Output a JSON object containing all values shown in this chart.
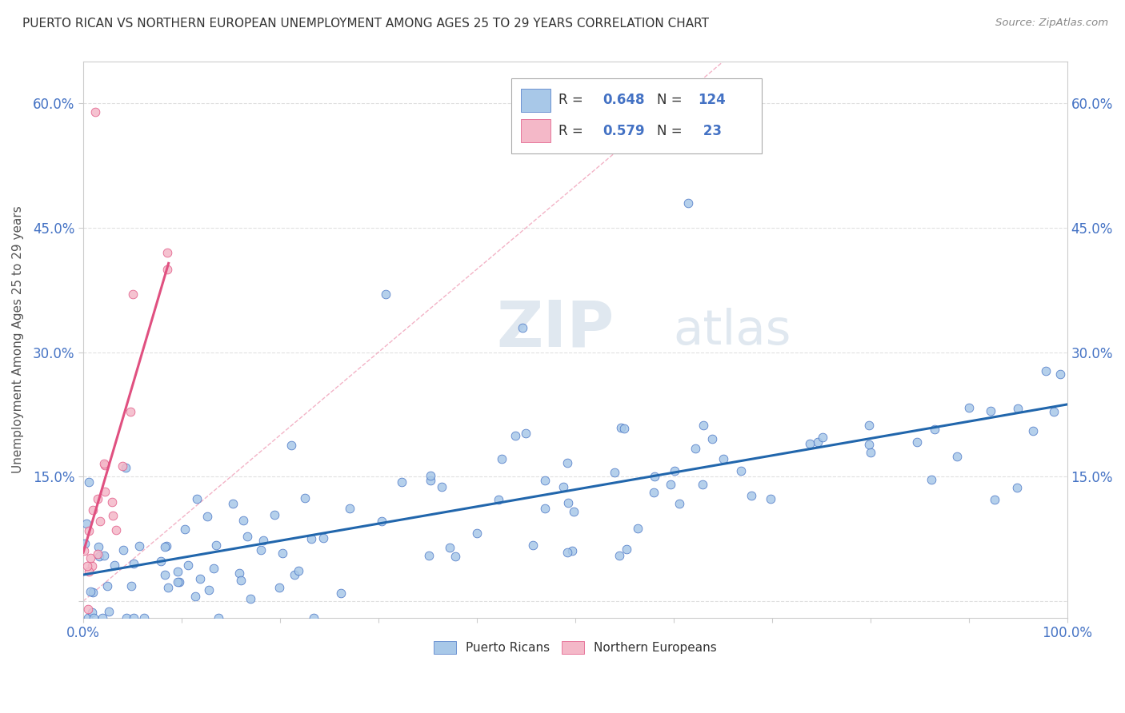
{
  "title": "PUERTO RICAN VS NORTHERN EUROPEAN UNEMPLOYMENT AMONG AGES 25 TO 29 YEARS CORRELATION CHART",
  "source": "Source: ZipAtlas.com",
  "ylabel": "Unemployment Among Ages 25 to 29 years",
  "xlim": [
    0,
    1
  ],
  "ylim": [
    -0.02,
    0.65
  ],
  "blue_R": 0.648,
  "blue_N": 124,
  "pink_R": 0.579,
  "pink_N": 23,
  "blue_color": "#a8c8e8",
  "pink_color": "#f4b8c8",
  "blue_edge_color": "#4472c4",
  "pink_edge_color": "#e05080",
  "blue_line_color": "#2166ac",
  "pink_line_color": "#e05080",
  "ref_line_color": "#f0a0b8",
  "watermark_color": "#e0e8f0",
  "background_color": "#ffffff",
  "grid_color": "#e0e0e0"
}
